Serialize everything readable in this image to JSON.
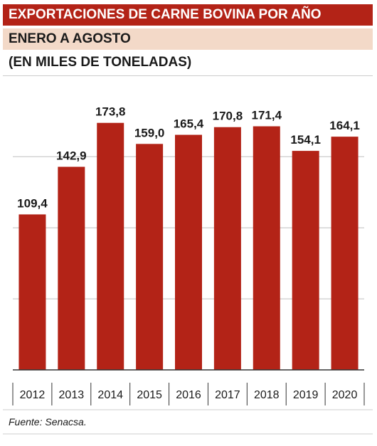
{
  "header": {
    "title": "EXPORTACIONES DE CARNE BOVINA POR AÑO",
    "subtitle": "ENERO A AGOSTO",
    "units": "(EN MILES DE TONELADAS)"
  },
  "footer": {
    "source": "Fuente: Senacsa."
  },
  "colors": {
    "bar": "#b32317",
    "title_bg": "#b32317",
    "subtitle_bg": "#f3d9c8",
    "grid": "#bfbfbf",
    "axis": "#333333"
  },
  "chart_data": {
    "type": "bar",
    "categories": [
      "2012",
      "2013",
      "2014",
      "2015",
      "2016",
      "2017",
      "2018",
      "2019",
      "2020"
    ],
    "values": [
      109.4,
      142.9,
      173.8,
      159.0,
      165.4,
      170.8,
      171.4,
      154.1,
      164.1
    ],
    "value_labels": [
      "109,4",
      "142,9",
      "173,8",
      "159,0",
      "165,4",
      "170,8",
      "171,4",
      "154,1",
      "164,1"
    ],
    "title": "EXPORTACIONES DE CARNE BOVINA POR AÑO",
    "subtitle": "ENERO A AGOSTO",
    "ylabel": "(EN MILES DE TONELADAS)",
    "xlabel": "",
    "ylim": [
      0,
      200
    ],
    "grid": true,
    "grid_values": [
      0,
      50,
      100,
      150
    ]
  }
}
